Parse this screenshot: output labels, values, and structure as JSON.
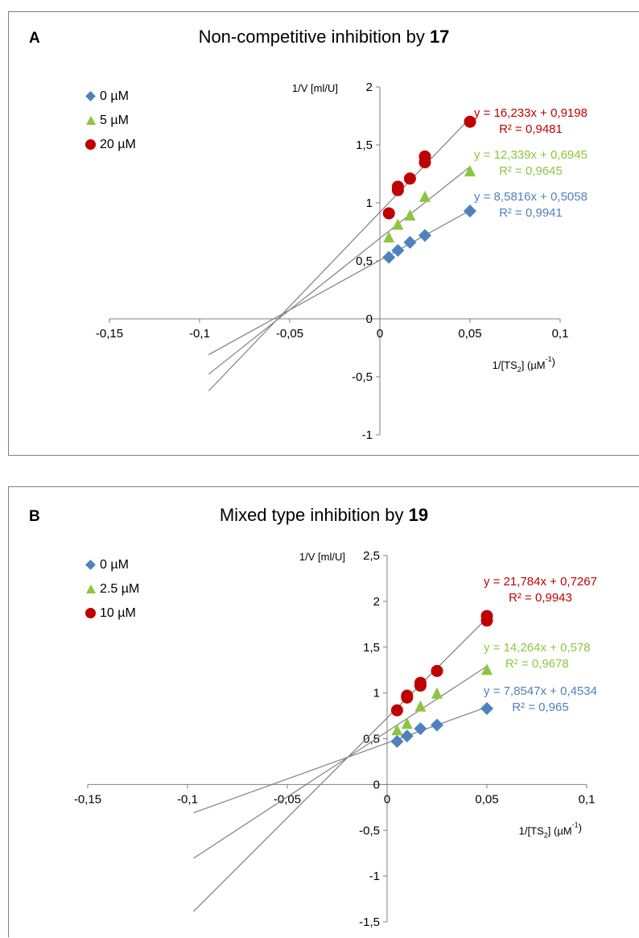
{
  "colors": {
    "0": "#4f81bd",
    "1": "#8cc63f",
    "2": "#c00000",
    "axis": "#7f7f7f",
    "fit": "#808080"
  },
  "chart_data": [
    {
      "type": "scatter",
      "panel": "A",
      "title_prefix": "Non-competitive inhibition by ",
      "title_bold": "17",
      "ylabel": "1/V [ml/U]",
      "xlabel_main": "1/[TS",
      "xlabel_sub": "2",
      "xlabel_tail": "] (µM",
      "xlabel_sup": "-1",
      "xlabel_end": ")",
      "xlim": [
        -0.15,
        0.1
      ],
      "ylim": [
        -1,
        2
      ],
      "xticks": [
        -0.15,
        -0.1,
        -0.05,
        0,
        0.05,
        0.1
      ],
      "xtick_labels": [
        "-0,15",
        "-0,1",
        "-0,05",
        "0",
        "0,05",
        "0,1"
      ],
      "yticks": [
        -1,
        -0.5,
        0,
        0.5,
        1,
        1.5,
        2
      ],
      "ytick_labels": [
        "-1",
        "-0,5",
        "0",
        "0,5",
        "1",
        "1,5",
        "2"
      ],
      "series": [
        {
          "name": "0 µM",
          "marker": "diamond",
          "slope": 8.5816,
          "intercept": 0.5058,
          "equation": "y = 8,5816x + 0,5058",
          "r2": "R² = 0,9941",
          "x": [
            0.005,
            0.01,
            0.0167,
            0.025,
            0.05
          ],
          "y": [
            0.53,
            0.59,
            0.66,
            0.72,
            0.93
          ],
          "fit_range": [
            -0.095,
            0.05
          ]
        },
        {
          "name": "5 µM",
          "marker": "triangle",
          "slope": 12.339,
          "intercept": 0.6945,
          "equation": "y = 12,339x + 0,6945",
          "r2": "R² = 0,9645",
          "x": [
            0.005,
            0.01,
            0.0167,
            0.025,
            0.05
          ],
          "y": [
            0.7,
            0.81,
            0.89,
            1.05,
            1.27
          ],
          "fit_range": [
            -0.095,
            0.05
          ]
        },
        {
          "name": "20 µM",
          "marker": "circle",
          "slope": 16.233,
          "intercept": 0.9198,
          "equation": "y = 16,233x + 0,9198",
          "r2": "R² = 0,9481",
          "x": [
            0.005,
            0.01,
            0.01,
            0.0167,
            0.025,
            0.025,
            0.05
          ],
          "y": [
            0.91,
            1.11,
            1.14,
            1.21,
            1.35,
            1.4,
            1.7
          ],
          "fit_range": [
            -0.095,
            0.05
          ]
        }
      ]
    },
    {
      "type": "scatter",
      "panel": "B",
      "title_prefix": "Mixed type inhibition by ",
      "title_bold": "19",
      "ylabel": "1/V [ml/U]",
      "xlabel_main": "1/[TS",
      "xlabel_sub": "2",
      "xlabel_tail": "] (µM",
      "xlabel_sup": "-1",
      "xlabel_end": ")",
      "xlim": [
        -0.15,
        0.1
      ],
      "ylim": [
        -1.5,
        2.5
      ],
      "xticks": [
        -0.15,
        -0.1,
        -0.05,
        0,
        0.05,
        0.1
      ],
      "xtick_labels": [
        "-0,15",
        "-0,1",
        "-0,05",
        "0",
        "0,05",
        "0,1"
      ],
      "yticks": [
        -1.5,
        -1,
        -0.5,
        0,
        0.5,
        1,
        1.5,
        2,
        2.5
      ],
      "ytick_labels": [
        "-1,5",
        "-1",
        "-0,5",
        "0",
        "0,5",
        "1",
        "1,5",
        "2",
        "2,5"
      ],
      "series": [
        {
          "name": "0 µM",
          "marker": "diamond",
          "slope": 7.8547,
          "intercept": 0.4534,
          "equation": "y = 7,8547x + 0,4534",
          "r2": "R² = 0,965",
          "x": [
            0.005,
            0.01,
            0.0167,
            0.025,
            0.05
          ],
          "y": [
            0.47,
            0.53,
            0.61,
            0.65,
            0.83
          ],
          "fit_range": [
            -0.097,
            0.05
          ]
        },
        {
          "name": "2.5 µM",
          "marker": "triangle",
          "slope": 14.264,
          "intercept": 0.578,
          "equation": "y = 14,264x + 0,578",
          "r2": "R² = 0,9678",
          "x": [
            0.005,
            0.01,
            0.0167,
            0.025,
            0.05
          ],
          "y": [
            0.59,
            0.66,
            0.85,
            0.99,
            1.25
          ],
          "fit_range": [
            -0.097,
            0.05
          ]
        },
        {
          "name": "10 µM",
          "marker": "circle",
          "slope": 21.784,
          "intercept": 0.7267,
          "equation": "y = 21,784x + 0,7267",
          "r2": "R² = 0,9943",
          "x": [
            0.005,
            0.01,
            0.01,
            0.0167,
            0.0167,
            0.025,
            0.05,
            0.05
          ],
          "y": [
            0.81,
            0.95,
            0.97,
            1.08,
            1.11,
            1.24,
            1.79,
            1.84
          ],
          "fit_range": [
            -0.097,
            0.05
          ]
        }
      ]
    }
  ]
}
